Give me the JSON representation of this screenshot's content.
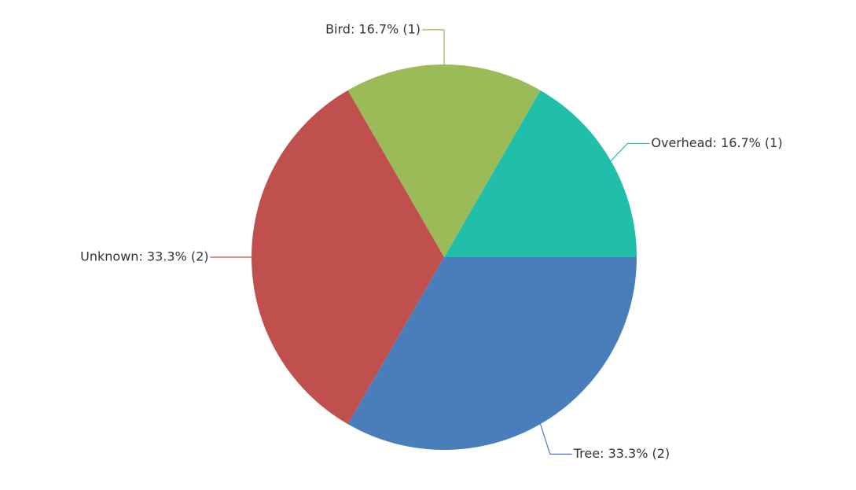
{
  "chart_data": {
    "type": "pie",
    "values": [
      1,
      1,
      2,
      2
    ],
    "value_labels": [
      "Overhead: 16.7% (1)",
      "Bird: 16.7% (1)",
      "Unknown: 33.3% (2)",
      "Tree: 33.3% (2)"
    ],
    "colors": [
      "#21bfa9",
      "#9bbb59",
      "#c0504d",
      "#4a7ebb"
    ]
  }
}
